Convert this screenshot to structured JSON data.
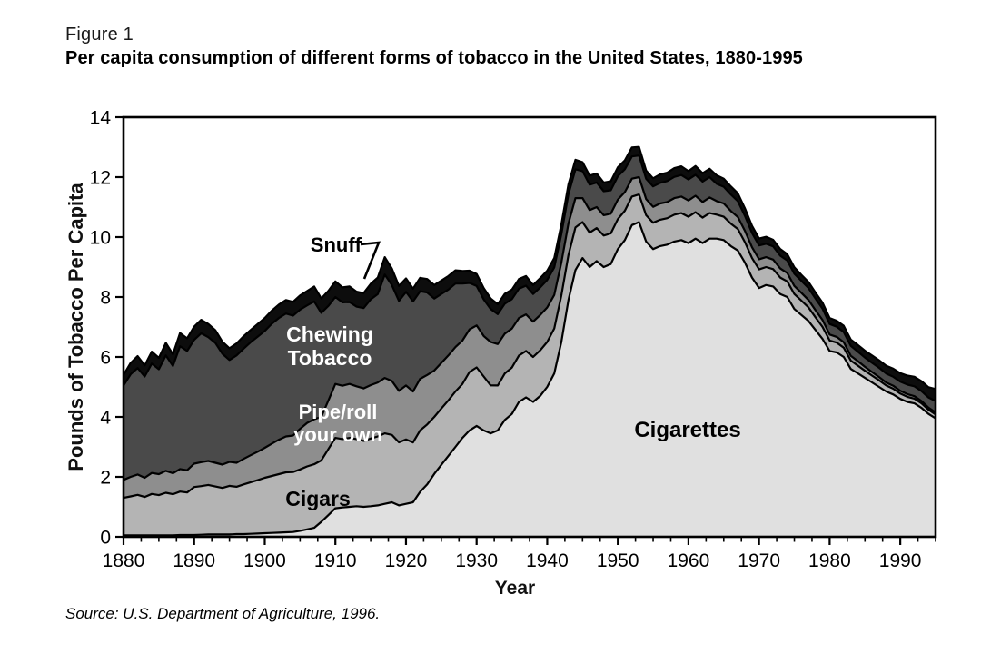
{
  "figure": {
    "label": "Figure 1",
    "title": "Per capita consumption of different forms of tobacco in the United States, 1880-1995",
    "source": "Source:  U.S. Department of Agriculture, 1996."
  },
  "chart_data": {
    "type": "area",
    "stacked": true,
    "title": "Per capita consumption of different forms of tobacco in the United States, 1880-1995",
    "xlabel": "Year",
    "ylabel": "Pounds of Tobacco Per Capita",
    "xlim": [
      1880,
      1995
    ],
    "ylim": [
      0,
      14
    ],
    "x_ticks": [
      1880,
      1890,
      1900,
      1910,
      1920,
      1930,
      1940,
      1950,
      1960,
      1970,
      1980,
      1990
    ],
    "x_minor_tick_step": 2.5,
    "y_ticks": [
      0,
      2,
      4,
      6,
      8,
      10,
      12,
      14
    ],
    "grid": false,
    "legend": "labels drawn inside stacked bands",
    "row_columns": [
      "year",
      "Cigarettes",
      "Cigars",
      "Pipe/roll your own",
      "Chewing Tobacco",
      "Snuff"
    ],
    "series": [
      {
        "name": "Cigarettes",
        "color": "#e0e0e0"
      },
      {
        "name": "Cigars",
        "color": "#b4b4b4"
      },
      {
        "name": "Pipe/roll your own",
        "color": "#8e8e8e"
      },
      {
        "name": "Chewing Tobacco",
        "color": "#4a4a4a"
      },
      {
        "name": "Snuff",
        "color": "#0d0d0d"
      }
    ],
    "labels": {
      "snuff": "Snuff",
      "chewing": [
        "Chewing",
        "Tobacco"
      ],
      "pipe": [
        "Pipe/roll",
        "your own"
      ],
      "cigars": "Cigars",
      "cigarettes": "Cigarettes"
    },
    "line_color": "#000000",
    "rows": [
      [
        1880,
        0.05,
        1.25,
        0.6,
        3.15,
        0.35
      ],
      [
        1881,
        0.05,
        1.3,
        0.65,
        3.42,
        0.38
      ],
      [
        1882,
        0.05,
        1.35,
        0.68,
        3.55,
        0.4
      ],
      [
        1883,
        0.05,
        1.28,
        0.64,
        3.38,
        0.37
      ],
      [
        1884,
        0.05,
        1.38,
        0.7,
        3.65,
        0.4
      ],
      [
        1885,
        0.05,
        1.34,
        0.7,
        3.5,
        0.38
      ],
      [
        1886,
        0.05,
        1.42,
        0.73,
        3.85,
        0.42
      ],
      [
        1887,
        0.05,
        1.37,
        0.7,
        3.58,
        0.39
      ],
      [
        1888,
        0.06,
        1.45,
        0.75,
        4.1,
        0.44
      ],
      [
        1889,
        0.06,
        1.42,
        0.74,
        3.98,
        0.42
      ],
      [
        1890,
        0.06,
        1.6,
        0.78,
        4.13,
        0.44
      ],
      [
        1891,
        0.07,
        1.62,
        0.8,
        4.3,
        0.45
      ],
      [
        1892,
        0.08,
        1.65,
        0.8,
        4.13,
        0.44
      ],
      [
        1893,
        0.08,
        1.6,
        0.79,
        4.0,
        0.42
      ],
      [
        1894,
        0.08,
        1.55,
        0.78,
        3.7,
        0.4
      ],
      [
        1895,
        0.08,
        1.62,
        0.8,
        3.4,
        0.39
      ],
      [
        1896,
        0.09,
        1.58,
        0.8,
        3.58,
        0.4
      ],
      [
        1897,
        0.09,
        1.66,
        0.85,
        3.68,
        0.41
      ],
      [
        1898,
        0.1,
        1.72,
        0.9,
        3.77,
        0.41
      ],
      [
        1899,
        0.11,
        1.78,
        0.95,
        3.84,
        0.42
      ],
      [
        1900,
        0.12,
        1.85,
        1.0,
        3.9,
        0.43
      ],
      [
        1901,
        0.13,
        1.9,
        1.08,
        4.0,
        0.44
      ],
      [
        1902,
        0.14,
        1.95,
        1.15,
        4.06,
        0.45
      ],
      [
        1903,
        0.15,
        2.0,
        1.2,
        4.1,
        0.45
      ],
      [
        1904,
        0.16,
        2.0,
        1.22,
        4.0,
        0.46
      ],
      [
        1905,
        0.2,
        2.05,
        1.35,
        3.98,
        0.47
      ],
      [
        1906,
        0.25,
        2.1,
        1.45,
        3.92,
        0.48
      ],
      [
        1907,
        0.3,
        2.12,
        1.5,
        3.93,
        0.5
      ],
      [
        1908,
        0.5,
        2.05,
        1.45,
        3.47,
        0.48
      ],
      [
        1909,
        0.72,
        2.2,
        1.62,
        3.16,
        0.5
      ],
      [
        1910,
        0.95,
        2.35,
        1.8,
        2.9,
        0.52
      ],
      [
        1911,
        0.98,
        2.28,
        1.78,
        2.78,
        0.5
      ],
      [
        1912,
        1.0,
        2.3,
        1.8,
        2.73,
        0.52
      ],
      [
        1913,
        1.02,
        2.24,
        1.76,
        2.66,
        0.5
      ],
      [
        1914,
        1.0,
        2.2,
        1.75,
        2.68,
        0.5
      ],
      [
        1915,
        1.02,
        2.26,
        1.78,
        2.86,
        0.52
      ],
      [
        1916,
        1.05,
        2.3,
        1.8,
        2.95,
        0.55
      ],
      [
        1917,
        1.1,
        2.35,
        1.85,
        3.45,
        0.58
      ],
      [
        1918,
        1.15,
        2.25,
        1.8,
        3.2,
        0.55
      ],
      [
        1919,
        1.05,
        2.1,
        1.72,
        3.0,
        0.5
      ],
      [
        1920,
        1.1,
        2.15,
        1.8,
        3.12,
        0.45
      ],
      [
        1921,
        1.15,
        2.0,
        1.7,
        3.0,
        0.43
      ],
      [
        1922,
        1.5,
        2.05,
        1.72,
        2.92,
        0.45
      ],
      [
        1923,
        1.75,
        2.0,
        1.65,
        2.75,
        0.45
      ],
      [
        1924,
        2.1,
        1.9,
        1.55,
        2.4,
        0.45
      ],
      [
        1925,
        2.4,
        1.88,
        1.52,
        2.3,
        0.45
      ],
      [
        1926,
        2.7,
        1.85,
        1.5,
        2.2,
        0.45
      ],
      [
        1927,
        3.0,
        1.85,
        1.48,
        2.12,
        0.44
      ],
      [
        1928,
        3.3,
        1.8,
        1.45,
        1.9,
        0.42
      ],
      [
        1929,
        3.55,
        1.95,
        1.42,
        1.55,
        0.41
      ],
      [
        1930,
        3.7,
        1.95,
        1.4,
        1.32,
        0.4
      ],
      [
        1931,
        3.55,
        1.8,
        1.35,
        1.22,
        0.38
      ],
      [
        1932,
        3.45,
        1.6,
        1.45,
        1.1,
        0.35
      ],
      [
        1933,
        3.55,
        1.5,
        1.38,
        1.0,
        0.33
      ],
      [
        1934,
        3.9,
        1.55,
        1.33,
        1.0,
        0.33
      ],
      [
        1935,
        4.1,
        1.55,
        1.3,
        0.98,
        0.32
      ],
      [
        1936,
        4.5,
        1.55,
        1.25,
        0.98,
        0.32
      ],
      [
        1937,
        4.65,
        1.55,
        1.22,
        0.96,
        0.32
      ],
      [
        1938,
        4.5,
        1.5,
        1.18,
        0.92,
        0.3
      ],
      [
        1939,
        4.7,
        1.52,
        1.18,
        0.92,
        0.31
      ],
      [
        1940,
        5.0,
        1.5,
        1.15,
        0.92,
        0.31
      ],
      [
        1941,
        5.45,
        1.5,
        1.12,
        0.92,
        0.31
      ],
      [
        1942,
        6.5,
        1.55,
        1.1,
        0.95,
        0.32
      ],
      [
        1943,
        7.9,
        1.5,
        1.05,
        0.98,
        0.33
      ],
      [
        1944,
        8.9,
        1.42,
        0.98,
        0.96,
        0.32
      ],
      [
        1945,
        9.3,
        1.2,
        0.8,
        0.9,
        0.3
      ],
      [
        1946,
        9.0,
        1.15,
        0.75,
        0.85,
        0.3
      ],
      [
        1947,
        9.2,
        1.1,
        0.7,
        0.82,
        0.3
      ],
      [
        1948,
        9.0,
        1.05,
        0.68,
        0.8,
        0.29
      ],
      [
        1949,
        9.1,
        1.02,
        0.66,
        0.78,
        0.3
      ],
      [
        1950,
        9.6,
        1.0,
        0.65,
        0.78,
        0.3
      ],
      [
        1951,
        9.9,
        0.98,
        0.62,
        0.76,
        0.3
      ],
      [
        1952,
        10.4,
        0.95,
        0.6,
        0.74,
        0.3
      ],
      [
        1953,
        10.5,
        0.92,
        0.58,
        0.72,
        0.29
      ],
      [
        1954,
        9.85,
        0.88,
        0.54,
        0.68,
        0.27
      ],
      [
        1955,
        9.6,
        0.88,
        0.53,
        0.68,
        0.27
      ],
      [
        1956,
        9.7,
        0.88,
        0.54,
        0.69,
        0.28
      ],
      [
        1957,
        9.75,
        0.88,
        0.54,
        0.7,
        0.28
      ],
      [
        1958,
        9.85,
        0.9,
        0.55,
        0.71,
        0.29
      ],
      [
        1959,
        9.9,
        0.9,
        0.55,
        0.72,
        0.29
      ],
      [
        1960,
        9.8,
        0.88,
        0.54,
        0.7,
        0.28
      ],
      [
        1961,
        9.95,
        0.88,
        0.55,
        0.7,
        0.29
      ],
      [
        1962,
        9.8,
        0.85,
        0.52,
        0.68,
        0.28
      ],
      [
        1963,
        9.95,
        0.85,
        0.52,
        0.68,
        0.28
      ],
      [
        1964,
        9.95,
        0.8,
        0.45,
        0.58,
        0.28
      ],
      [
        1965,
        9.9,
        0.78,
        0.44,
        0.56,
        0.27
      ],
      [
        1966,
        9.7,
        0.75,
        0.42,
        0.55,
        0.27
      ],
      [
        1967,
        9.55,
        0.72,
        0.4,
        0.53,
        0.26
      ],
      [
        1968,
        9.15,
        0.68,
        0.38,
        0.5,
        0.25
      ],
      [
        1969,
        8.65,
        0.65,
        0.36,
        0.48,
        0.24
      ],
      [
        1970,
        8.3,
        0.62,
        0.34,
        0.46,
        0.23
      ],
      [
        1971,
        8.4,
        0.6,
        0.33,
        0.45,
        0.23
      ],
      [
        1972,
        8.35,
        0.58,
        0.32,
        0.44,
        0.22
      ],
      [
        1973,
        8.1,
        0.55,
        0.3,
        0.43,
        0.22
      ],
      [
        1974,
        8.0,
        0.52,
        0.28,
        0.42,
        0.21
      ],
      [
        1975,
        7.6,
        0.5,
        0.27,
        0.41,
        0.21
      ],
      [
        1976,
        7.4,
        0.48,
        0.26,
        0.4,
        0.2
      ],
      [
        1977,
        7.2,
        0.45,
        0.25,
        0.4,
        0.2
      ],
      [
        1978,
        6.9,
        0.42,
        0.24,
        0.39,
        0.2
      ],
      [
        1979,
        6.6,
        0.4,
        0.23,
        0.38,
        0.2
      ],
      [
        1980,
        6.2,
        0.35,
        0.2,
        0.35,
        0.2
      ],
      [
        1981,
        6.15,
        0.33,
        0.19,
        0.34,
        0.2
      ],
      [
        1982,
        6.0,
        0.31,
        0.18,
        0.34,
        0.21
      ],
      [
        1983,
        5.6,
        0.28,
        0.16,
        0.33,
        0.21
      ],
      [
        1984,
        5.45,
        0.26,
        0.15,
        0.32,
        0.22
      ],
      [
        1985,
        5.3,
        0.24,
        0.13,
        0.31,
        0.23
      ],
      [
        1986,
        5.15,
        0.23,
        0.12,
        0.31,
        0.24
      ],
      [
        1987,
        5.0,
        0.22,
        0.11,
        0.31,
        0.25
      ],
      [
        1988,
        4.85,
        0.2,
        0.1,
        0.3,
        0.26
      ],
      [
        1989,
        4.75,
        0.19,
        0.1,
        0.3,
        0.27
      ],
      [
        1990,
        4.6,
        0.18,
        0.09,
        0.31,
        0.28
      ],
      [
        1991,
        4.5,
        0.17,
        0.09,
        0.32,
        0.3
      ],
      [
        1992,
        4.45,
        0.16,
        0.08,
        0.33,
        0.32
      ],
      [
        1993,
        4.3,
        0.15,
        0.08,
        0.33,
        0.33
      ],
      [
        1994,
        4.1,
        0.14,
        0.07,
        0.34,
        0.34
      ],
      [
        1995,
        3.95,
        0.13,
        0.07,
        0.38,
        0.4
      ]
    ]
  }
}
